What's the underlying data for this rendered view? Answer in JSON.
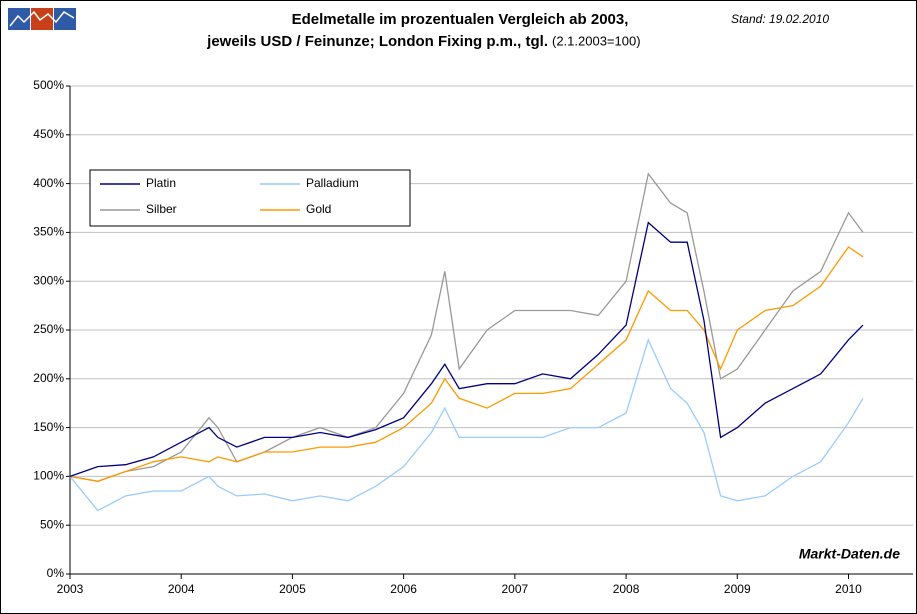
{
  "chart_data": {
    "type": "line",
    "title": "Edelmetalle im prozentualen Vergleich ab 2003,",
    "subtitle": "jeweils USD / Feinunze; London Fixing p.m., tgl.",
    "subtitle_note": "(2.1.2003=100)",
    "date_note": "Stand: 19.02.2010",
    "watermark": "Markt-Daten.de",
    "x": [
      2003,
      2003.25,
      2003.5,
      2003.75,
      2004,
      2004.25,
      2004.33,
      2004.5,
      2004.75,
      2005,
      2005.25,
      2005.5,
      2005.75,
      2006,
      2006.25,
      2006.37,
      2006.5,
      2006.75,
      2007,
      2007.25,
      2007.5,
      2007.75,
      2008,
      2008.2,
      2008.4,
      2008.55,
      2008.7,
      2008.85,
      2009,
      2009.25,
      2009.5,
      2009.75,
      2010,
      2010.13
    ],
    "series": [
      {
        "name": "Platin",
        "color": "#000080",
        "values": [
          100,
          110,
          112,
          120,
          135,
          150,
          140,
          130,
          140,
          140,
          145,
          140,
          148,
          160,
          195,
          215,
          190,
          195,
          195,
          205,
          200,
          225,
          255,
          360,
          340,
          340,
          260,
          140,
          150,
          175,
          190,
          205,
          240,
          255
        ]
      },
      {
        "name": "Palladium",
        "color": "#99ccff",
        "values": [
          100,
          65,
          80,
          85,
          85,
          100,
          90,
          80,
          82,
          75,
          80,
          75,
          90,
          110,
          145,
          170,
          140,
          140,
          140,
          140,
          150,
          150,
          165,
          240,
          190,
          175,
          145,
          80,
          75,
          80,
          100,
          115,
          155,
          180
        ]
      },
      {
        "name": "Silber",
        "color": "#999999",
        "values": [
          100,
          95,
          105,
          110,
          125,
          160,
          150,
          115,
          125,
          140,
          150,
          140,
          150,
          185,
          245,
          310,
          210,
          250,
          270,
          270,
          270,
          265,
          300,
          410,
          380,
          370,
          290,
          200,
          210,
          250,
          290,
          310,
          370,
          350
        ]
      },
      {
        "name": "Gold",
        "color": "#ff9900",
        "values": [
          100,
          95,
          105,
          115,
          120,
          115,
          120,
          115,
          125,
          125,
          130,
          130,
          135,
          150,
          175,
          200,
          180,
          170,
          185,
          185,
          190,
          215,
          240,
          290,
          270,
          270,
          250,
          210,
          250,
          270,
          275,
          295,
          335,
          325
        ]
      }
    ],
    "xlim": [
      2003,
      2010.58
    ],
    "xticks": [
      2003,
      2004,
      2005,
      2006,
      2007,
      2008,
      2009,
      2010
    ],
    "ylim": [
      0,
      500
    ],
    "yticks": [
      {
        "value": 0,
        "label": "0%"
      },
      {
        "value": 50,
        "label": "50%"
      },
      {
        "value": 100,
        "label": "100%"
      },
      {
        "value": 150,
        "label": "150%"
      },
      {
        "value": 200,
        "label": "200%"
      },
      {
        "value": 250,
        "label": "250%"
      },
      {
        "value": 300,
        "label": "300%"
      },
      {
        "value": 350,
        "label": "350%"
      },
      {
        "value": 400,
        "label": "400%"
      },
      {
        "value": 450,
        "label": "450%"
      },
      {
        "value": 500,
        "label": "500%"
      }
    ],
    "grid": true
  }
}
